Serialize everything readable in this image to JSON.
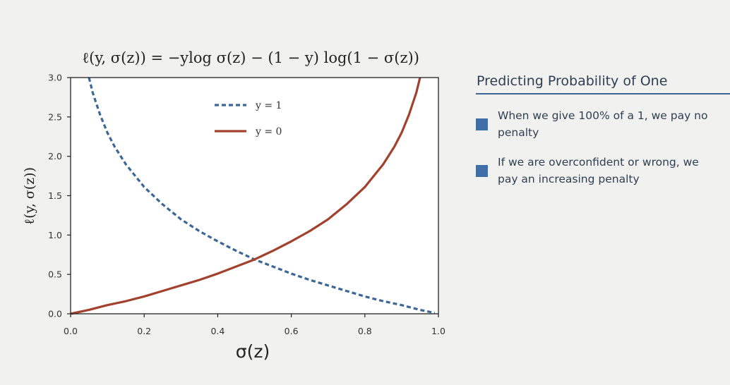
{
  "chart_data": {
    "type": "line",
    "title": "ℓ(y, σ(z)) = −ylog σ(z) − (1 − y) log(1 − σ(z))",
    "xlabel": "σ(z)",
    "ylabel": "ℓ(y, σ(z))",
    "xlim": [
      0.0,
      1.0
    ],
    "ylim": [
      0.0,
      3.0
    ],
    "x_ticks": [
      "0.0",
      "0.2",
      "0.4",
      "0.6",
      "0.8",
      "1.0"
    ],
    "y_ticks": [
      "0.0",
      "0.5",
      "1.0",
      "1.5",
      "2.0",
      "2.5",
      "3.0"
    ],
    "legend_position": "top-center",
    "series": [
      {
        "name": "y = 1",
        "style": "dashed",
        "color": "#3b6797",
        "x": [
          0.05,
          0.06,
          0.08,
          0.1,
          0.12,
          0.15,
          0.2,
          0.25,
          0.3,
          0.35,
          0.4,
          0.45,
          0.5,
          0.55,
          0.6,
          0.65,
          0.7,
          0.75,
          0.8,
          0.85,
          0.9,
          0.95,
          0.99
        ],
        "y": [
          3.0,
          2.81,
          2.53,
          2.3,
          2.12,
          1.9,
          1.61,
          1.39,
          1.2,
          1.05,
          0.92,
          0.8,
          0.69,
          0.6,
          0.51,
          0.43,
          0.36,
          0.29,
          0.22,
          0.16,
          0.11,
          0.05,
          0.01
        ]
      },
      {
        "name": "y = 0",
        "style": "solid",
        "color": "#a2412d",
        "x": [
          0.0,
          0.05,
          0.1,
          0.15,
          0.2,
          0.25,
          0.3,
          0.35,
          0.4,
          0.45,
          0.5,
          0.55,
          0.6,
          0.65,
          0.7,
          0.75,
          0.8,
          0.85,
          0.88,
          0.9,
          0.92,
          0.94,
          0.95
        ],
        "y": [
          0.0,
          0.05,
          0.11,
          0.16,
          0.22,
          0.29,
          0.36,
          0.43,
          0.51,
          0.6,
          0.69,
          0.8,
          0.92,
          1.05,
          1.2,
          1.39,
          1.61,
          1.9,
          2.12,
          2.3,
          2.53,
          2.81,
          3.0
        ]
      }
    ]
  },
  "side_panel": {
    "title": "Predicting Probability of One",
    "bullets": [
      "When we give 100% of a 1, we pay no penalty",
      "If we are overconfident or wrong, we pay an increasing penalty"
    ],
    "accent_color": "#3f6ea8"
  }
}
